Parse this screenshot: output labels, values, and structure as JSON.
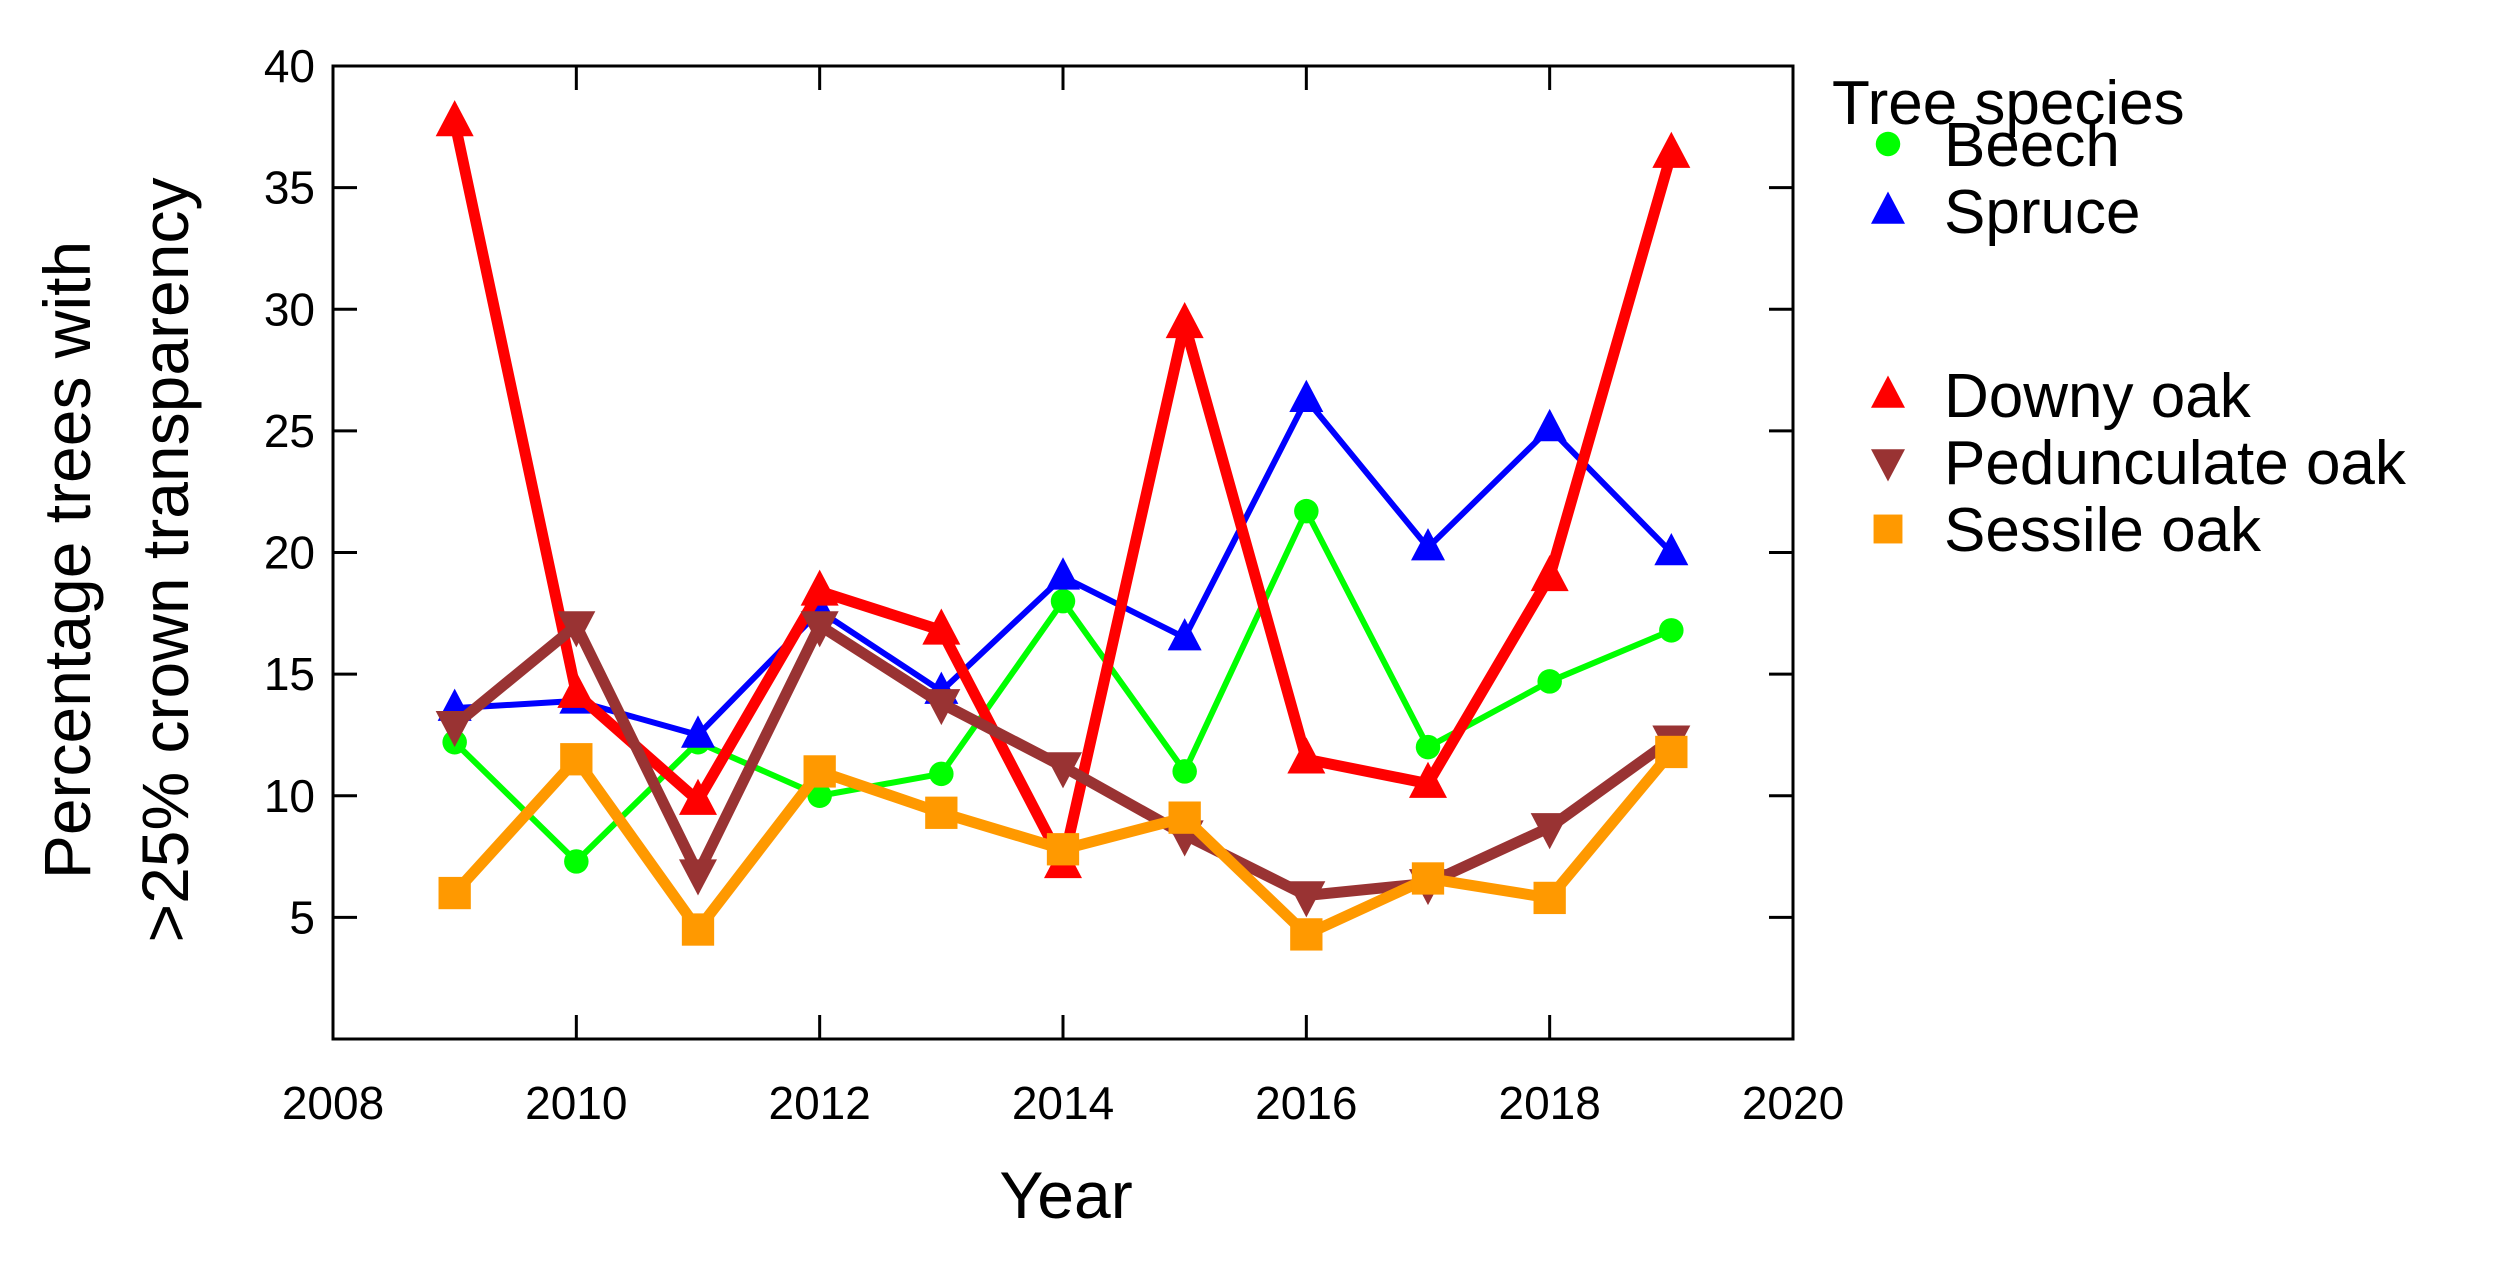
{
  "chart_data": {
    "type": "line",
    "xlabel": "Year",
    "ylabel_line1": "Percentage trees with",
    "ylabel_line2": ">25% crown transparency",
    "xlim": [
      2008,
      2020
    ],
    "ylim": [
      0,
      40
    ],
    "xticks": [
      2008,
      2010,
      2012,
      2014,
      2016,
      2018,
      2020
    ],
    "yticks": [
      5,
      10,
      15,
      20,
      25,
      30,
      35,
      40
    ],
    "grid": false,
    "legend_title": "Tree species",
    "legend_position": "right",
    "series": [
      {
        "name": "Beech",
        "color": "#00ff00",
        "marker": "circle",
        "line_width": "thin",
        "x": [
          2009,
          2010,
          2011,
          2012,
          2013,
          2014,
          2015,
          2016,
          2017,
          2018,
          2019
        ],
        "y": [
          12.2,
          7.3,
          12.2,
          10.0,
          10.9,
          18.0,
          11.0,
          21.7,
          12.0,
          14.7,
          16.8
        ]
      },
      {
        "name": "Spruce",
        "color": "#0000ff",
        "marker": "triangle-up",
        "line_width": "thin",
        "x": [
          2009,
          2010,
          2011,
          2012,
          2013,
          2014,
          2015,
          2016,
          2017,
          2018,
          2019
        ],
        "y": [
          13.6,
          13.9,
          12.5,
          17.6,
          14.3,
          19.0,
          16.5,
          26.3,
          20.2,
          25.1,
          20.0
        ]
      },
      {
        "name": "Downy oak",
        "color": "#ff0000",
        "marker": "triangle-up",
        "line_width": "thick",
        "x": [
          2009,
          2010,
          2011,
          2012,
          2013,
          2014,
          2015,
          2016,
          2017,
          2018,
          2019
        ],
        "y": [
          37.7,
          14.2,
          9.8,
          18.4,
          16.8,
          7.2,
          29.4,
          11.5,
          10.5,
          19.0,
          36.4
        ]
      },
      {
        "name": "Pedunculate oak",
        "color": "#993333",
        "marker": "triangle-down",
        "line_width": "thick",
        "x": [
          2009,
          2010,
          2011,
          2012,
          2013,
          2014,
          2015,
          2016,
          2017,
          2018,
          2019
        ],
        "y": [
          12.9,
          17.0,
          6.8,
          17.0,
          13.8,
          11.2,
          8.4,
          5.9,
          6.4,
          8.7,
          12.3
        ]
      },
      {
        "name": "Sessile oak",
        "color": "#ff9900",
        "marker": "square",
        "line_width": "thick",
        "x": [
          2009,
          2010,
          2011,
          2012,
          2013,
          2014,
          2015,
          2016,
          2017,
          2018,
          2019
        ],
        "y": [
          6.0,
          11.5,
          4.5,
          11.0,
          9.3,
          7.8,
          9.1,
          4.3,
          6.6,
          5.8,
          11.8
        ]
      }
    ]
  }
}
